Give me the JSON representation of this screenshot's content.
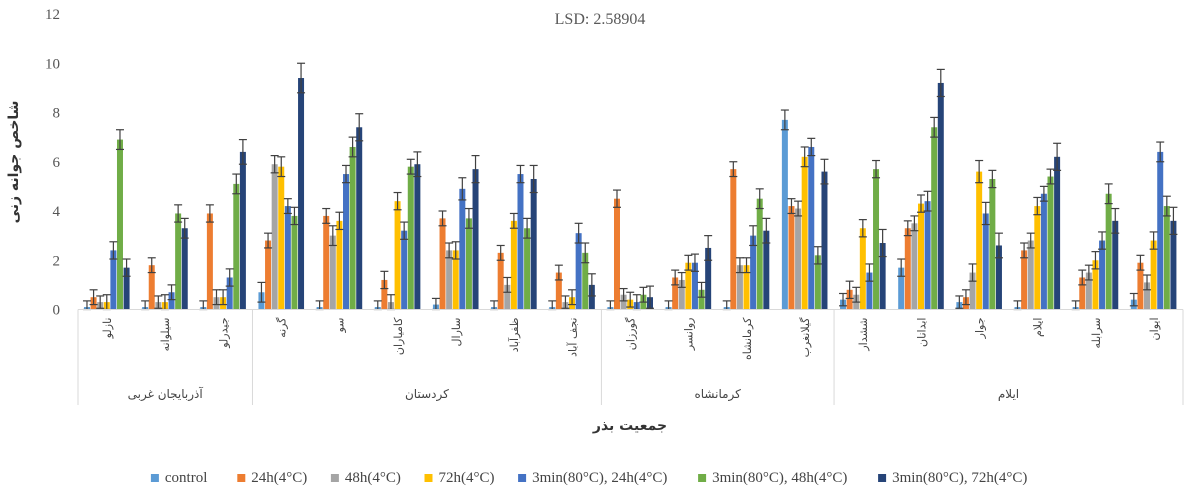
{
  "chart_data": {
    "type": "bar",
    "title": "LSD: 2.58904",
    "xlabel": "جمعیت بذر",
    "ylabel": "شاخص جوانه زنی",
    "ylim": [
      0,
      12
    ],
    "yticks": [
      "0",
      "2",
      "4",
      "6",
      "8",
      "10",
      "12"
    ],
    "grid": false,
    "legend_position": "bottom",
    "groups": [
      {
        "name": "آذربایجان غربی",
        "size": 3
      },
      {
        "name": "کردستان",
        "size": 6
      },
      {
        "name": "کرمانشاه",
        "size": 4
      },
      {
        "name": "ایلام",
        "size": 6
      }
    ],
    "categories": [
      "نازلو",
      "سیلوانه",
      "جیدرلو",
      "گرنه",
      "سو",
      "کامیاران",
      "سارال",
      "ظفرآباد",
      "نجف آباد",
      "گورزان",
      "روانسر",
      "کرمانشاه",
      "گیلانغرب",
      "ششدار",
      "ابدانان",
      "جوار",
      "ایلام",
      "سرابله",
      "ایوان"
    ],
    "colors": [
      "#5B9BD5",
      "#ED7D31",
      "#A5A5A5",
      "#FFC000",
      "#4472C4",
      "#70AD47",
      "#264478"
    ],
    "series": [
      {
        "name": "control",
        "values": [
          0.1,
          0.1,
          0.1,
          0.7,
          0.1,
          0.1,
          0.2,
          0.1,
          0.1,
          0.1,
          0.1,
          0.1,
          7.7,
          0.4,
          1.7,
          0.3,
          0.1,
          0.1,
          0.4
        ],
        "errors": [
          0.25,
          0.25,
          0.25,
          0.4,
          0.25,
          0.25,
          0.25,
          0.25,
          0.25,
          0.25,
          0.25,
          0.25,
          0.4,
          0.25,
          0.35,
          0.25,
          0.25,
          0.25,
          0.25
        ]
      },
      {
        "name": "24h(4°C)",
        "values": [
          0.5,
          1.8,
          3.9,
          2.8,
          3.8,
          1.2,
          3.7,
          2.3,
          1.5,
          4.5,
          1.3,
          5.7,
          4.2,
          0.8,
          3.3,
          0.5,
          2.4,
          1.3,
          1.9
        ],
        "errors": [
          0.3,
          0.3,
          0.35,
          0.3,
          0.3,
          0.35,
          0.3,
          0.3,
          0.3,
          0.35,
          0.3,
          0.3,
          0.3,
          0.35,
          0.3,
          0.3,
          0.3,
          0.3,
          0.3
        ]
      },
      {
        "name": "48h(4°C)",
        "values": [
          0.3,
          0.3,
          0.5,
          5.9,
          3.0,
          0.3,
          2.4,
          1.0,
          0.3,
          0.6,
          1.2,
          1.8,
          4.1,
          0.6,
          3.5,
          1.5,
          2.8,
          1.5,
          1.1
        ],
        "errors": [
          0.25,
          0.25,
          0.3,
          0.35,
          0.4,
          0.3,
          0.3,
          0.3,
          0.25,
          0.25,
          0.3,
          0.3,
          0.3,
          0.3,
          0.3,
          0.35,
          0.3,
          0.3,
          0.3
        ]
      },
      {
        "name": "72h(4°C)",
        "values": [
          0.3,
          0.3,
          0.5,
          5.8,
          3.6,
          4.4,
          2.4,
          3.6,
          0.5,
          0.4,
          1.9,
          1.8,
          6.2,
          3.3,
          4.3,
          5.6,
          4.2,
          2.0,
          2.8
        ],
        "errors": [
          0.3,
          0.3,
          0.3,
          0.4,
          0.35,
          0.35,
          0.35,
          0.3,
          0.3,
          0.3,
          0.3,
          0.3,
          0.4,
          0.35,
          0.35,
          0.45,
          0.35,
          0.35,
          0.35
        ]
      },
      {
        "name": "3min(80°C), 24h(4°C)",
        "values": [
          2.4,
          0.7,
          1.3,
          4.2,
          5.5,
          3.2,
          4.9,
          5.5,
          3.1,
          0.3,
          1.9,
          3.0,
          6.6,
          1.5,
          4.4,
          3.9,
          4.7,
          2.8,
          6.4
        ],
        "errors": [
          0.35,
          0.3,
          0.35,
          0.3,
          0.35,
          0.35,
          0.45,
          0.35,
          0.4,
          0.3,
          0.35,
          0.4,
          0.35,
          0.35,
          0.4,
          0.45,
          0.3,
          0.35,
          0.4
        ]
      },
      {
        "name": "3min(80°C), 48h(4°C)",
        "values": [
          6.9,
          3.9,
          5.1,
          3.8,
          6.6,
          5.8,
          3.7,
          3.3,
          2.3,
          0.6,
          0.8,
          4.5,
          2.2,
          5.7,
          7.4,
          5.3,
          5.4,
          4.7,
          4.2
        ],
        "errors": [
          0.4,
          0.35,
          0.4,
          0.35,
          0.4,
          0.3,
          0.4,
          0.4,
          0.4,
          0.3,
          0.3,
          0.4,
          0.35,
          0.35,
          0.4,
          0.35,
          0.3,
          0.4,
          0.4
        ]
      },
      {
        "name": "3min(80°C), 72h(4°C)",
        "values": [
          1.7,
          3.3,
          6.4,
          9.4,
          7.4,
          5.9,
          5.7,
          5.3,
          1.0,
          0.5,
          2.5,
          3.2,
          5.6,
          2.7,
          9.2,
          2.6,
          6.2,
          3.6,
          3.6
        ],
        "errors": [
          0.35,
          0.4,
          0.5,
          0.6,
          0.55,
          0.5,
          0.55,
          0.55,
          0.45,
          0.45,
          0.5,
          0.5,
          0.5,
          0.55,
          0.55,
          0.5,
          0.55,
          0.5,
          0.55
        ]
      }
    ]
  }
}
